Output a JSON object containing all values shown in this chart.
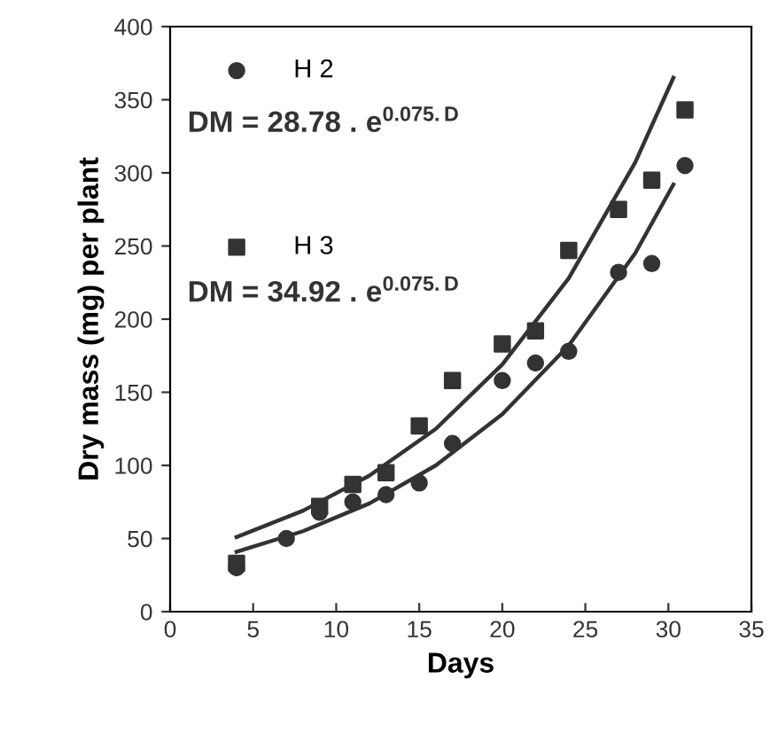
{
  "chart_data": {
    "type": "scatter",
    "xlabel": "Days",
    "ylabel": "Dry mass (mg) per plant",
    "xlim": [
      0,
      35
    ],
    "xticks": [
      0,
      5,
      10,
      15,
      20,
      25,
      30,
      35
    ],
    "ylim": [
      0,
      400
    ],
    "yticks": [
      0,
      50,
      100,
      150,
      200,
      250,
      300,
      350,
      400
    ],
    "grid": false,
    "legend": "top left",
    "series": [
      {
        "name": "H 2",
        "color": "#333333",
        "marker": "circle",
        "x": [
          4,
          7,
          9,
          11,
          13,
          15,
          17,
          20,
          22,
          24,
          27,
          29,
          31
        ],
        "values": [
          30,
          50,
          68,
          75,
          80,
          88,
          115,
          158,
          170,
          178,
          232,
          238,
          305
        ]
      },
      {
        "name": "H 3",
        "color": "#333333",
        "marker": "square",
        "x": [
          4,
          9,
          11,
          13,
          15,
          17,
          20,
          22,
          24,
          27,
          29,
          31
        ],
        "values": [
          33,
          72,
          87,
          95,
          127,
          158,
          183,
          192,
          247,
          275,
          295,
          343
        ]
      },
      {
        "type": "line",
        "color": "#333333",
        "x": [
          4,
          8,
          12,
          16,
          20,
          24,
          28,
          30.3
        ],
        "values": [
          51,
          69,
          93,
          125,
          169,
          228,
          307,
          365
        ]
      },
      {
        "type": "line",
        "color": "#333333",
        "x": [
          4,
          8,
          12,
          16,
          20,
          24,
          28,
          30.3
        ],
        "values": [
          41,
          55,
          74,
          100,
          135,
          182,
          245,
          292
        ]
      }
    ],
    "annotations": [
      "DM = 28.78 . e$^{0.075.D}$",
      "DM = 34.92 . e$^{0.075.D}$"
    ]
  }
}
